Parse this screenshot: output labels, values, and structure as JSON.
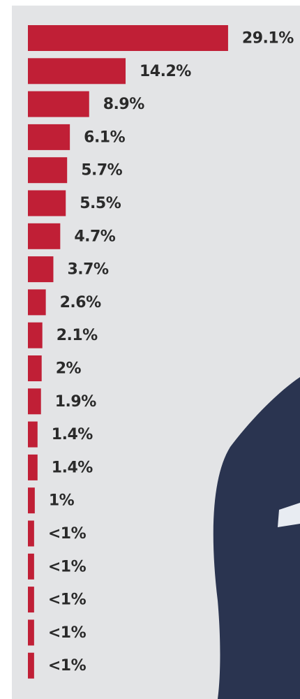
{
  "chart_data": {
    "type": "bar",
    "orientation": "horizontal",
    "values": [
      29.1,
      14.2,
      8.9,
      6.1,
      5.7,
      5.5,
      4.7,
      3.7,
      2.6,
      2.1,
      2,
      1.9,
      1.4,
      1.4,
      1,
      0.9,
      0.9,
      0.9,
      0.9,
      0.9
    ],
    "value_labels": [
      "29.1%",
      "14.2%",
      "8.9%",
      "6.1%",
      "5.7%",
      "5.5%",
      "4.7%",
      "3.7%",
      "2.6%",
      "2.1%",
      "2%",
      "1.9%",
      "1.4%",
      "1.4%",
      "1%",
      "<1%",
      "<1%",
      "<1%",
      "<1%",
      "<1%"
    ],
    "color": "#c01f36"
  }
}
